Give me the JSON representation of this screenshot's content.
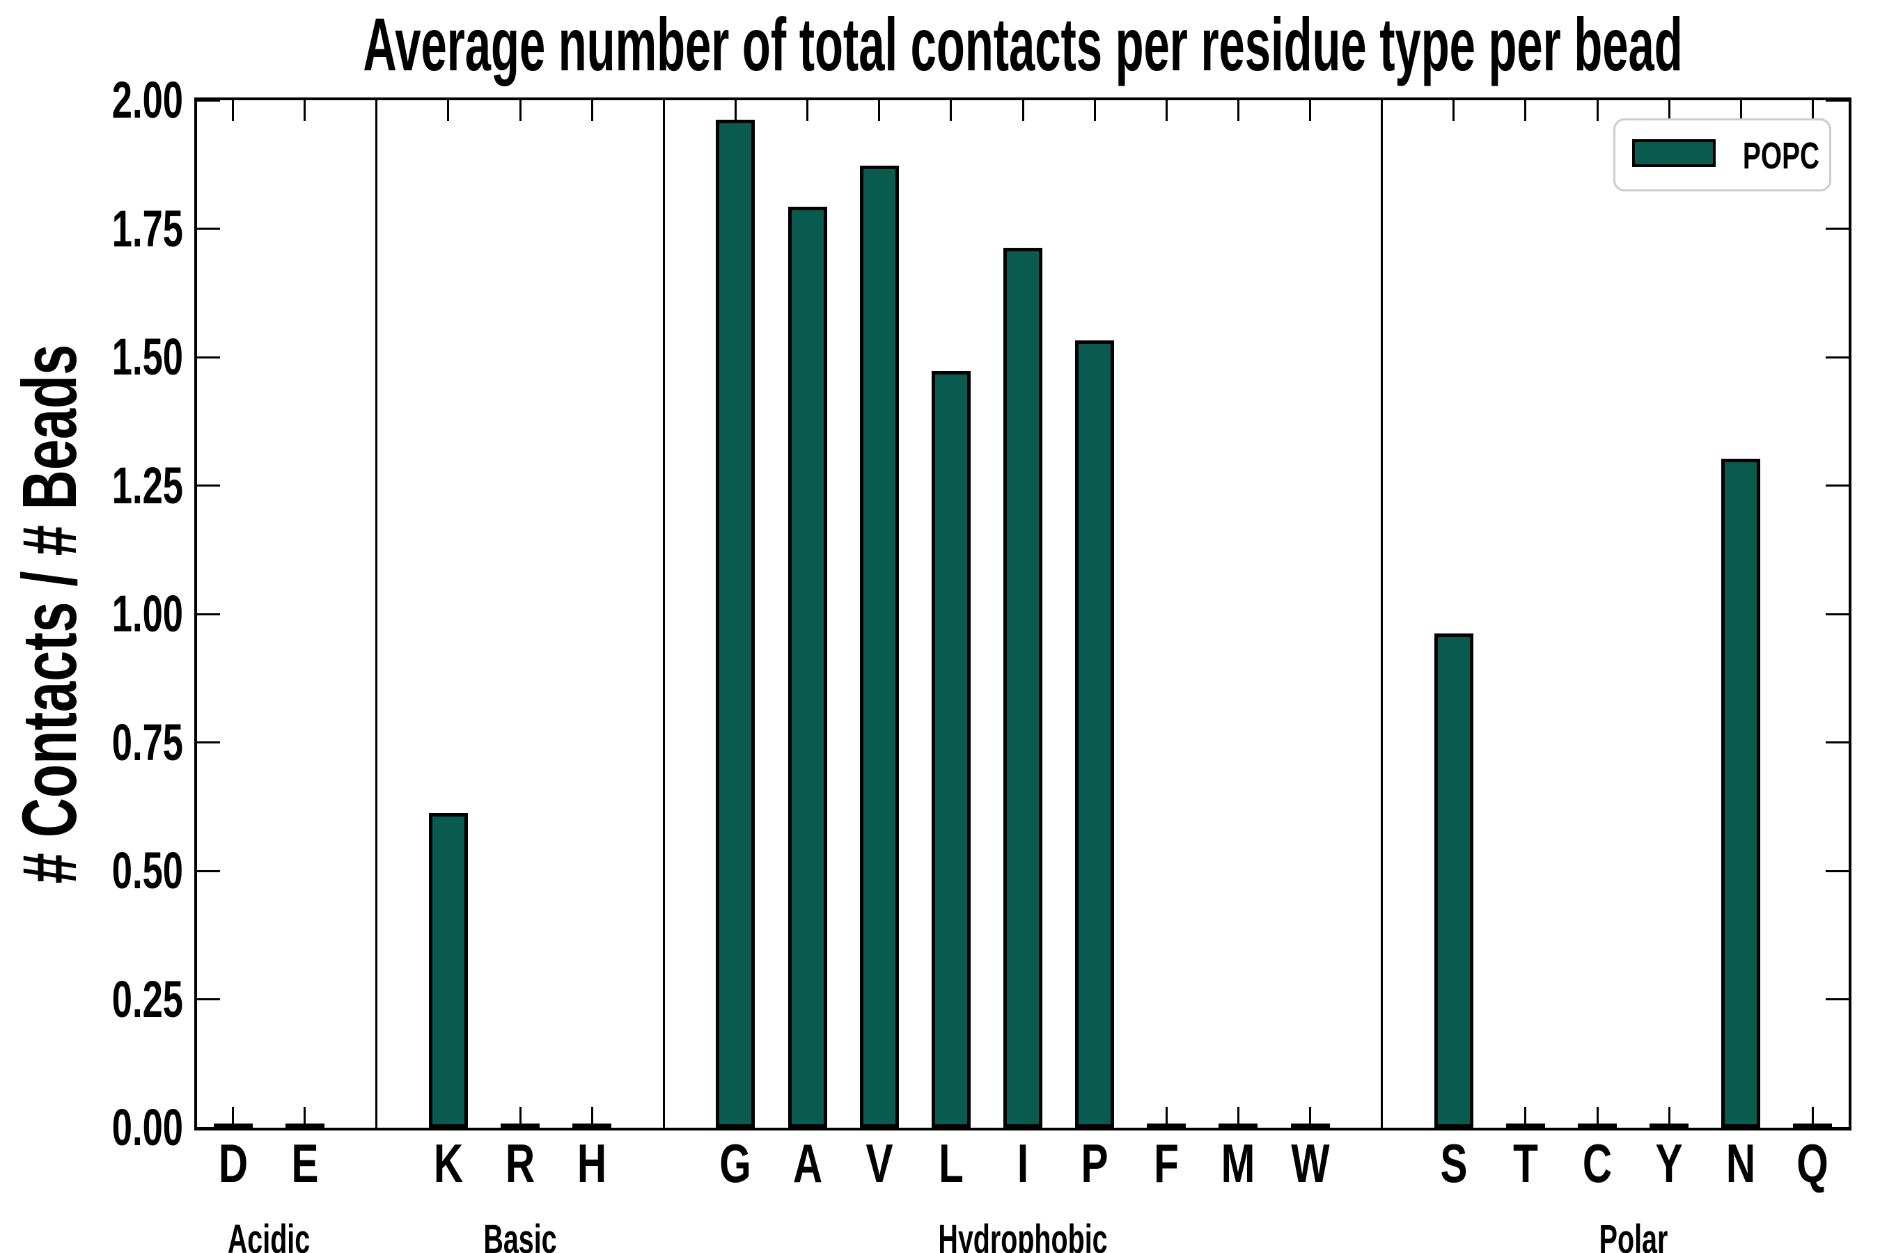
{
  "figure": {
    "title": "Average number of total contacts per residue type per bead",
    "ylabel": "# Contacts / # Beads"
  },
  "legend": {
    "label": "POPC"
  },
  "colors": {
    "bar_fill": "#095a4f",
    "bar_edge": "#000000",
    "axis": "#000000",
    "legend_border": "#cccccc",
    "background": "#ffffff"
  },
  "chart_data": {
    "type": "bar",
    "title": "Average number of total contacts per residue type per bead",
    "ylabel": "# Contacts / # Beads",
    "xlabel": "",
    "ylim": [
      0,
      2.0
    ],
    "yticks": [
      0,
      0.25,
      0.5,
      0.75,
      1.0,
      1.25,
      1.5,
      1.75,
      2.0
    ],
    "ytick_labels": [
      "0.00",
      "0.25",
      "0.50",
      "0.75",
      "1.00",
      "1.25",
      "1.50",
      "1.75",
      "2.00"
    ],
    "grid": false,
    "legend_position": "upper right",
    "series_name": "POPC",
    "groups": [
      {
        "label": "Acidic",
        "categories": [
          "D",
          "E"
        ],
        "values": [
          0,
          0
        ]
      },
      {
        "label": "Basic",
        "categories": [
          "K",
          "R",
          "H"
        ],
        "values": [
          0.61,
          0,
          0
        ]
      },
      {
        "label": "Hydrophobic",
        "categories": [
          "G",
          "A",
          "V",
          "L",
          "I",
          "P",
          "F",
          "M",
          "W"
        ],
        "values": [
          1.96,
          1.79,
          1.87,
          1.47,
          1.71,
          1.53,
          0,
          0,
          0
        ]
      },
      {
        "label": "Polar",
        "categories": [
          "S",
          "T",
          "C",
          "Y",
          "N",
          "Q"
        ],
        "values": [
          0.96,
          0,
          0,
          0,
          1.3,
          0
        ]
      }
    ]
  }
}
